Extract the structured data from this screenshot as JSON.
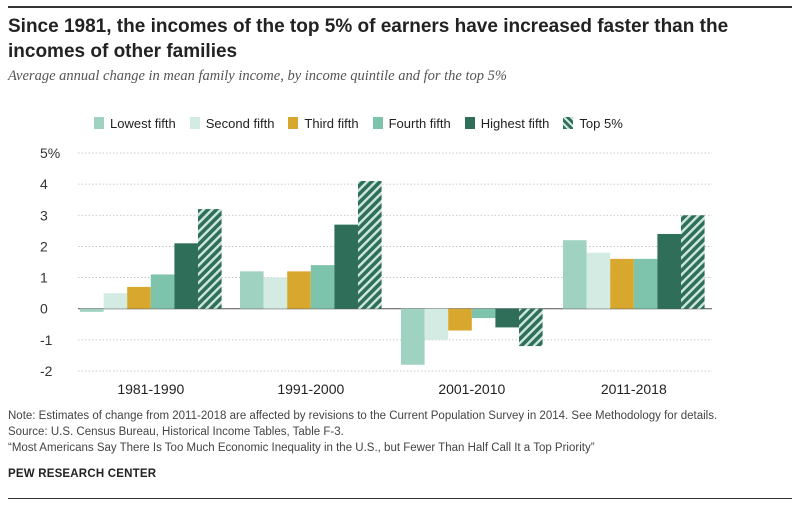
{
  "title": "Since 1981, the incomes of the top 5% of earners have increased faster than the incomes of other families",
  "subtitle": "Average annual change in mean family income, by income quintile and for the top 5%",
  "notes": {
    "note": "Note: Estimates of change from 2011-2018 are affected by revisions to the Current Population Survey in 2014. See Methodology for details.",
    "source": "Source: U.S. Census Bureau, Historical Income Tables, Table F-3.",
    "report": "“Most Americans Say There Is Too Much Economic Inequality in the U.S., but Fewer Than Half Call It a Top Priority”"
  },
  "source_name": "PEW RESEARCH CENTER",
  "chart_data": {
    "type": "bar",
    "categories": [
      "1981-1990",
      "1991-2000",
      "2001-2010",
      "2011-2018"
    ],
    "series": [
      {
        "name": "Lowest fifth",
        "color": "#9fd2c1",
        "pattern": false,
        "values": [
          -0.1,
          1.2,
          -1.8,
          2.2
        ]
      },
      {
        "name": "Second fifth",
        "color": "#d4ebe3",
        "pattern": false,
        "values": [
          0.5,
          1.0,
          -1.0,
          1.8
        ]
      },
      {
        "name": "Third fifth",
        "color": "#d8a72d",
        "pattern": false,
        "values": [
          0.7,
          1.2,
          -0.7,
          1.6
        ]
      },
      {
        "name": "Fourth fifth",
        "color": "#7ec4ad",
        "pattern": false,
        "values": [
          1.1,
          1.4,
          -0.3,
          1.6
        ]
      },
      {
        "name": "Highest fifth",
        "color": "#2f6f59",
        "pattern": false,
        "values": [
          2.1,
          2.7,
          -0.6,
          2.4
        ]
      },
      {
        "name": "Top 5%",
        "color": "#2f6f59",
        "pattern": true,
        "values": [
          3.2,
          4.1,
          -1.2,
          3.0
        ]
      }
    ],
    "y_ticks": [
      "5%",
      "4",
      "3",
      "2",
      "1",
      "0",
      "-1",
      "-2"
    ],
    "ylim": [
      -2,
      5
    ],
    "grid": true,
    "legend_position": "top"
  }
}
